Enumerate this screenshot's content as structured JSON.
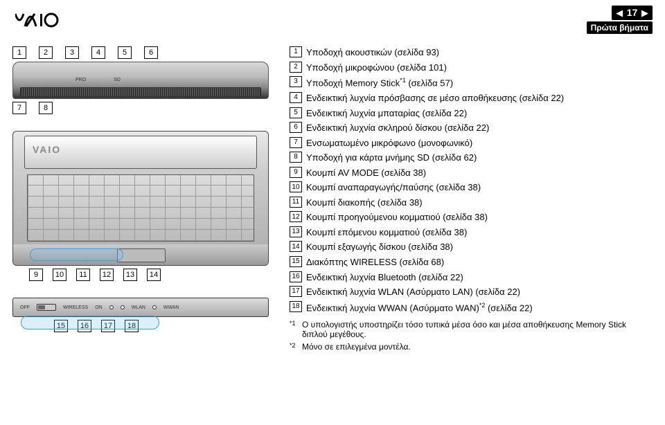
{
  "header": {
    "page_number": "17",
    "breadcrumb": "Πρώτα βήματα",
    "nav_left": "◀",
    "nav_right": "▶"
  },
  "logo": {
    "text": "VAIO"
  },
  "diagram_top": {
    "callouts_top": [
      "1",
      "2",
      "3",
      "4",
      "5",
      "6"
    ],
    "callouts_bottom": [
      "7",
      "8"
    ],
    "slot_pro": "PRO",
    "slot_sd": "SD"
  },
  "diagram_laptop": {
    "callouts_bottom": [
      "9",
      "10",
      "11",
      "12",
      "13",
      "14"
    ],
    "mark": "VAIO"
  },
  "diagram_switch": {
    "off_label": "OFF",
    "wireless_label": "WIRELESS",
    "on_label": "ON",
    "wlan_label": "WLAN",
    "wwan_label": "WWAN",
    "callouts_bottom": [
      "15",
      "16",
      "17",
      "18"
    ]
  },
  "features": [
    {
      "n": "1",
      "text": "Υποδοχή ακουστικών (σελίδα 93)"
    },
    {
      "n": "2",
      "text": "Υποδοχή μικροφώνου (σελίδα 101)"
    },
    {
      "n": "3",
      "text_pre": "Υποδοχή Memory Stick",
      "sup": "*1",
      "text_post": " (σελίδα 57)"
    },
    {
      "n": "4",
      "text": "Ενδεικτική λυχνία πρόσβασης σε μέσο αποθήκευσης (σελίδα 22)"
    },
    {
      "n": "5",
      "text": "Ενδεικτική λυχνία μπαταρίας (σελίδα 22)"
    },
    {
      "n": "6",
      "text": "Ενδεικτική λυχνία σκληρού δίσκου (σελίδα 22)"
    },
    {
      "n": "7",
      "text": "Ενσωματωμένο μικρόφωνο (μονοφωνικό)"
    },
    {
      "n": "8",
      "text": "Υποδοχή για κάρτα μνήμης SD (σελίδα 62)"
    },
    {
      "n": "9",
      "text": "Κουμπί AV MODE (σελίδα 38)"
    },
    {
      "n": "10",
      "text": "Κουμπί αναπαραγωγής/παύσης (σελίδα 38)"
    },
    {
      "n": "11",
      "text": "Κουμπί διακοπής (σελίδα 38)"
    },
    {
      "n": "12",
      "text": "Κουμπί προηγούμενου κομματιού (σελίδα 38)"
    },
    {
      "n": "13",
      "text": "Κουμπί επόμενου κομματιού (σελίδα 38)"
    },
    {
      "n": "14",
      "text": "Κουμπί εξαγωγής δίσκου (σελίδα 38)"
    },
    {
      "n": "15",
      "text": "Διακόπτης WIRELESS (σελίδα 68)"
    },
    {
      "n": "16",
      "text": "Ενδεικτική λυχνία Bluetooth (σελίδα 22)"
    },
    {
      "n": "17",
      "text": "Ενδεικτική λυχνία WLAN (Ασύρματο LAN) (σελίδα 22)"
    },
    {
      "n": "18",
      "text_pre": "Ενδεικτική λυχνία WWAN (Ασύρματο WAN)",
      "sup": "*2",
      "text_post": " (σελίδα 22)"
    }
  ],
  "footnotes": [
    {
      "mark": "*1",
      "text": "Ο υπολογιστής υποστηρίζει τόσο τυπικά μέσα όσο και μέσα αποθήκευσης Memory Stick διπλού μεγέθους."
    },
    {
      "mark": "*2",
      "text": "Μόνο σε επιλεγμένα μοντέλα."
    }
  ]
}
